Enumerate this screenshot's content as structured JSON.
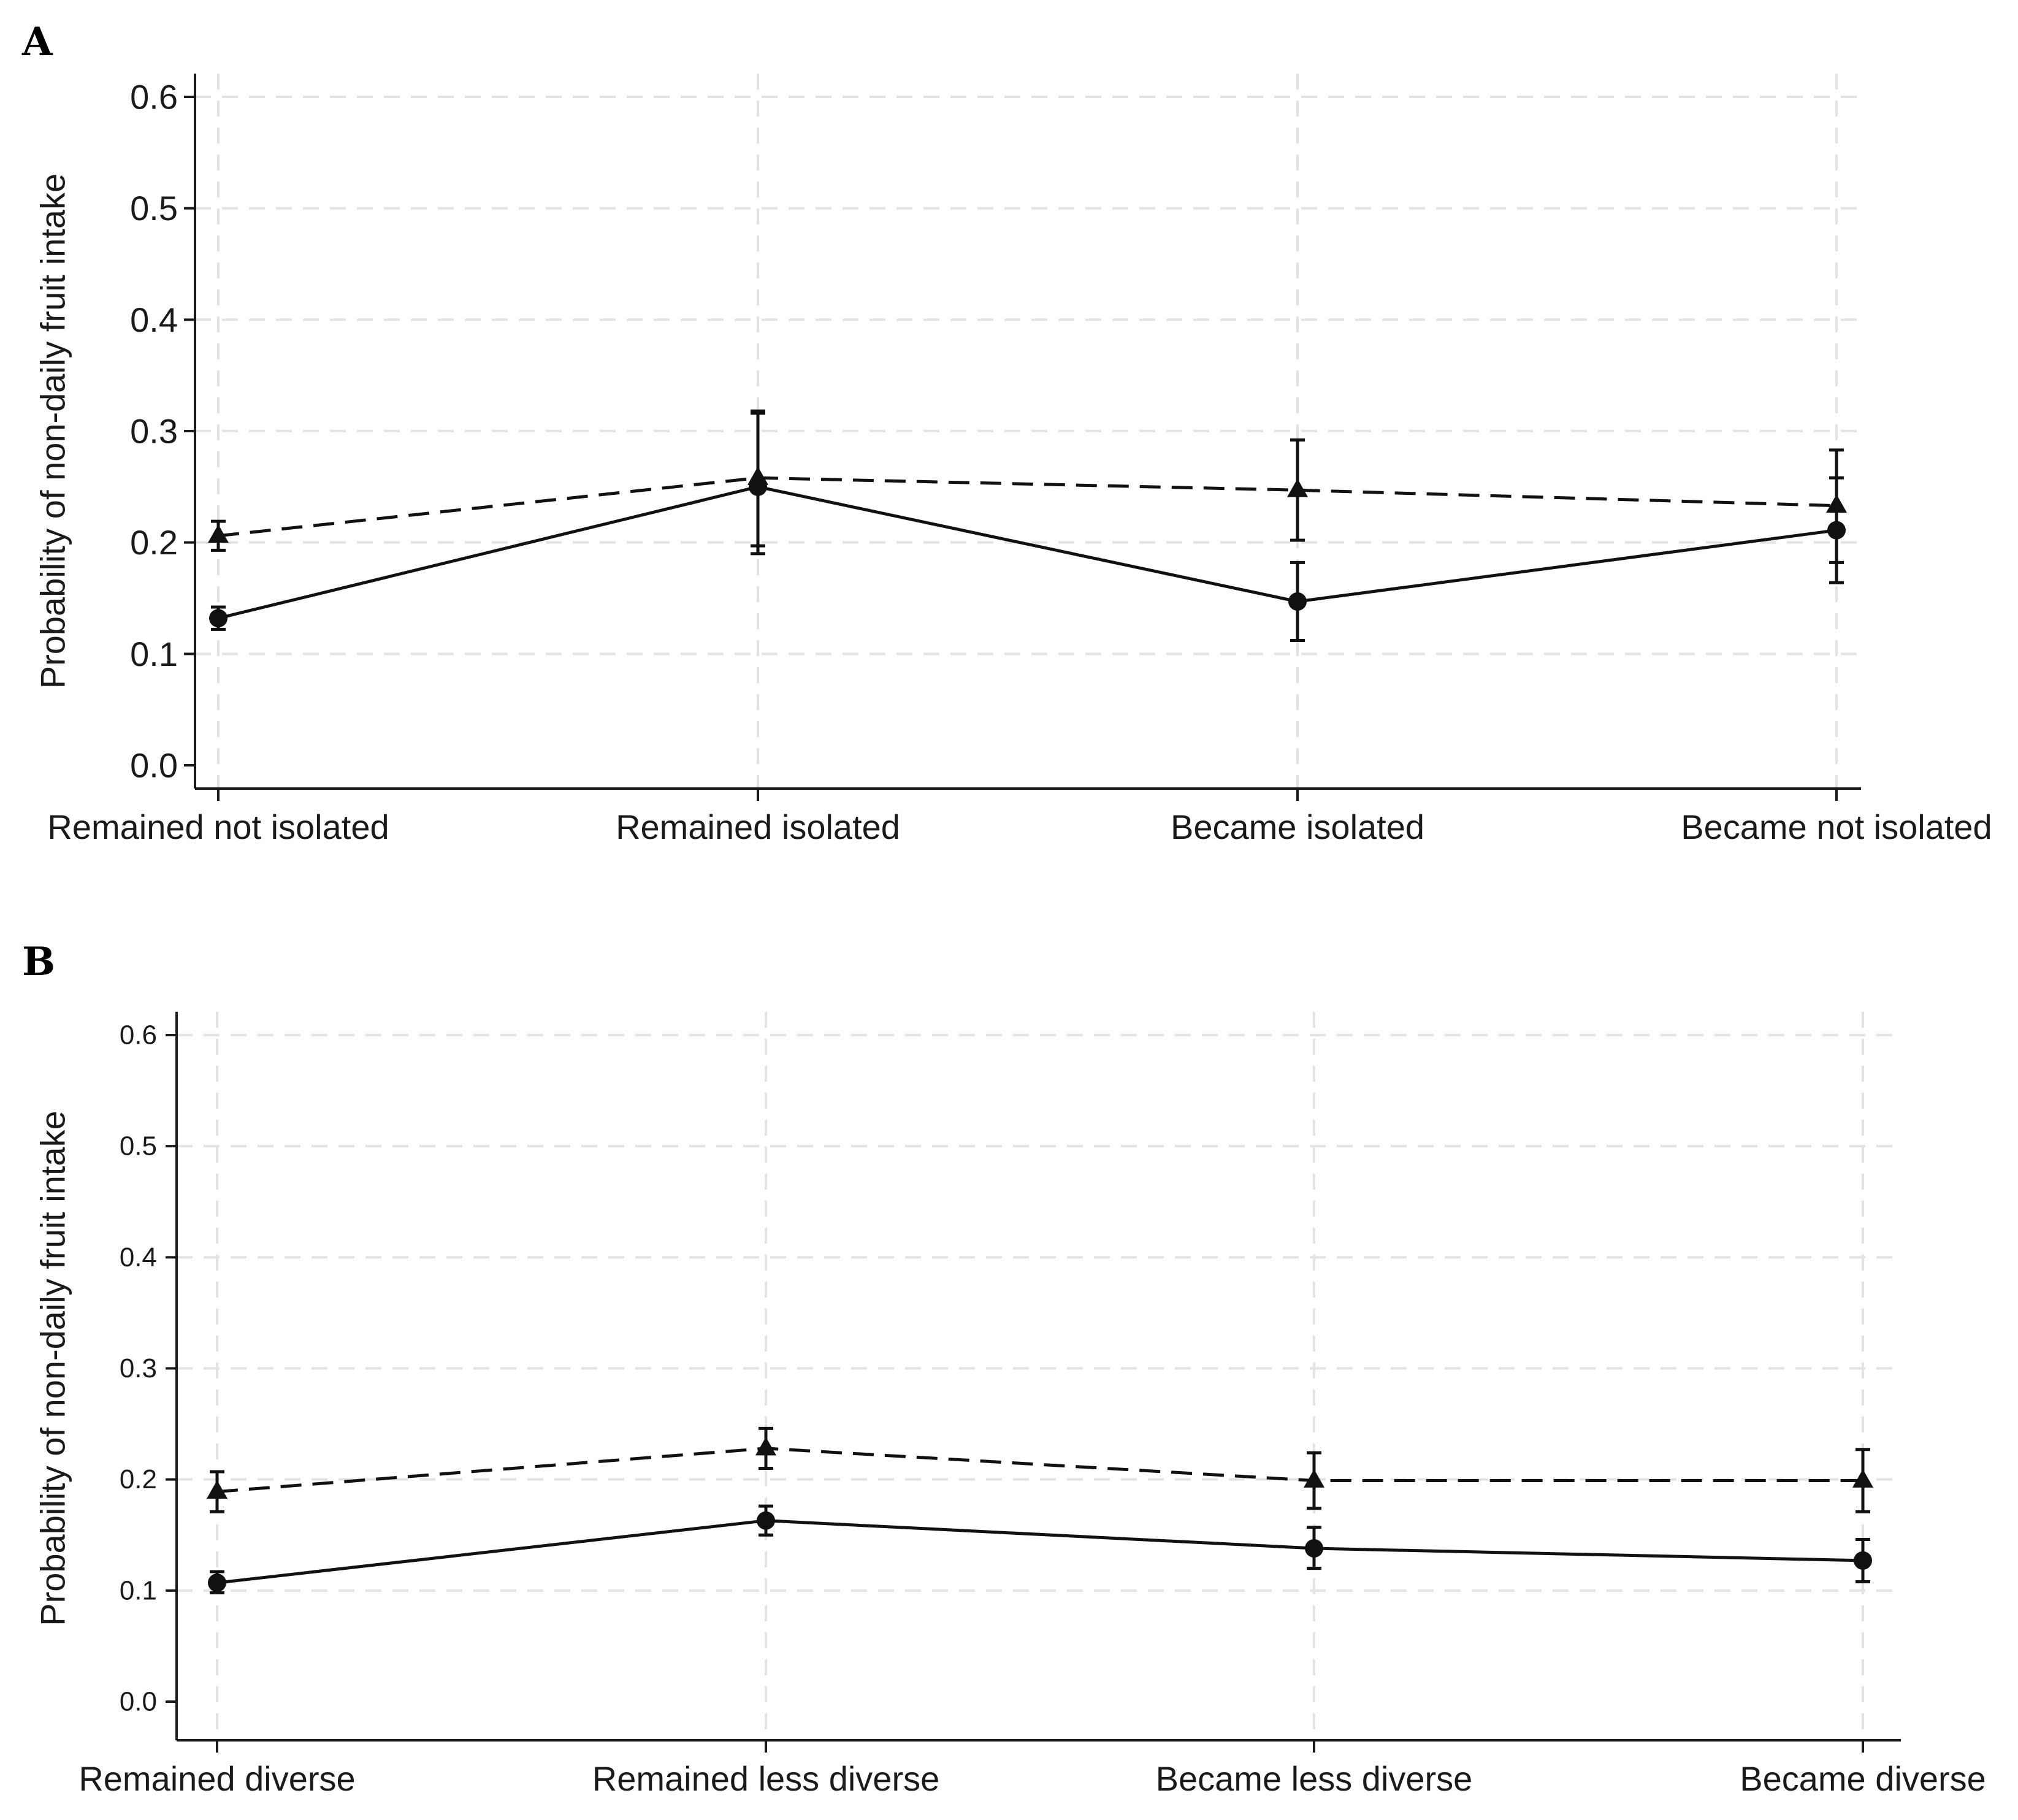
{
  "chart_data": [
    {
      "panel": "A",
      "type": "line",
      "ylabel": "Probability of non-daily fruit intake",
      "xlabel": "",
      "ylim": [
        0.0,
        0.6
      ],
      "yticks": [
        "0.0",
        "0.1",
        "0.2",
        "0.3",
        "0.4",
        "0.5",
        "0.6"
      ],
      "yticks_values": [
        0.0,
        0.1,
        0.2,
        0.3,
        0.4,
        0.5,
        0.6
      ],
      "categories": [
        "Remained not isolated",
        "Remained isolated",
        "Became isolated",
        "Became not isolated"
      ],
      "grid": true,
      "series": [
        {
          "name": "circle-solid",
          "marker": "circle",
          "linestyle": "solid",
          "values": [
            0.132,
            0.25,
            0.147,
            0.211
          ],
          "lower": [
            0.122,
            0.19,
            0.112,
            0.164
          ],
          "upper": [
            0.142,
            0.316,
            0.182,
            0.258
          ]
        },
        {
          "name": "triangle-dashed",
          "marker": "triangle",
          "linestyle": "dashed",
          "values": [
            0.206,
            0.258,
            0.247,
            0.233
          ],
          "lower": [
            0.193,
            0.197,
            0.202,
            0.182
          ],
          "upper": [
            0.219,
            0.318,
            0.292,
            0.283
          ]
        }
      ]
    },
    {
      "panel": "B",
      "type": "line",
      "ylabel": "Probability of non-daily fruit intake",
      "xlabel": "",
      "ylim": [
        0.0,
        0.6
      ],
      "yticks": [
        "0.0",
        "0.1",
        "0.2",
        "0.3",
        "0.4",
        "0.5",
        "0.6"
      ],
      "yticks_values": [
        0.0,
        0.1,
        0.2,
        0.3,
        0.4,
        0.5,
        0.6
      ],
      "categories": [
        "Remained diverse",
        "Remained less diverse",
        "Became less diverse",
        "Became diverse"
      ],
      "grid": true,
      "series": [
        {
          "name": "circle-solid",
          "marker": "circle",
          "linestyle": "solid",
          "values": [
            0.107,
            0.163,
            0.138,
            0.127
          ],
          "lower": [
            0.098,
            0.15,
            0.12,
            0.108
          ],
          "upper": [
            0.117,
            0.176,
            0.157,
            0.146
          ]
        },
        {
          "name": "triangle-dashed",
          "marker": "triangle",
          "linestyle": "dashed",
          "values": [
            0.189,
            0.228,
            0.199,
            0.199
          ],
          "lower": [
            0.171,
            0.21,
            0.174,
            0.171
          ],
          "upper": [
            0.207,
            0.246,
            0.224,
            0.227
          ]
        }
      ]
    }
  ]
}
